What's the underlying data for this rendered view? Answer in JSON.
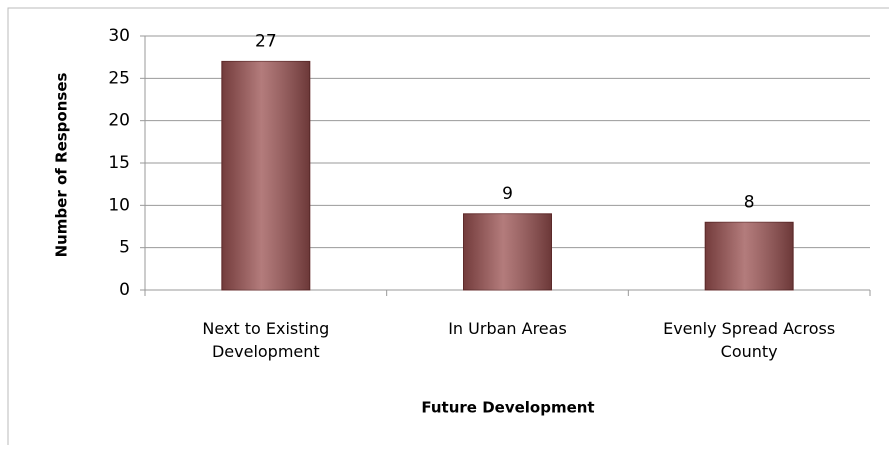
{
  "chart_data": {
    "type": "bar",
    "categories": [
      "Next to Existing Development",
      "In Urban Areas",
      "Evenly Spread Across County"
    ],
    "values": [
      27,
      9,
      8
    ],
    "color": "#9a5050",
    "ylim": [
      0,
      30
    ],
    "yticks": [
      0,
      5,
      10,
      15,
      20,
      25,
      30
    ],
    "grid": true,
    "xlabel": "Future Development",
    "ylabel": "Number of Responses"
  }
}
